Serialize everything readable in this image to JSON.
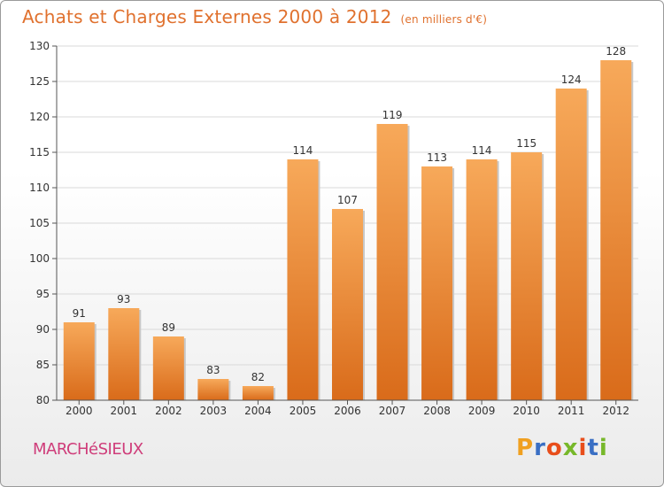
{
  "title": "Achats et Charges Externes 2000 à 2012",
  "unit": "(en milliers d'€)",
  "commune": "MARCHéSIEUX",
  "logo": {
    "letters": [
      "P",
      "r",
      "o",
      "x",
      "i",
      "t",
      "i"
    ],
    "colors": [
      "#f0a020",
      "#3a6fc4",
      "#e84e1b",
      "#77b82a",
      "#e84e1b",
      "#3a6fc4",
      "#77b82a"
    ]
  },
  "colors": {
    "bar_top": "#f7a95a",
    "bar_bottom": "#d96b1a",
    "title": "#e0712e",
    "commune": "#cf3d7a"
  },
  "chart_data": {
    "type": "bar",
    "categories": [
      "2000",
      "2001",
      "2002",
      "2003",
      "2004",
      "2005",
      "2006",
      "2007",
      "2008",
      "2009",
      "2010",
      "2011",
      "2012"
    ],
    "values": [
      91,
      93,
      89,
      83,
      82,
      114,
      107,
      119,
      113,
      114,
      115,
      124,
      128
    ],
    "ylim": [
      80,
      130
    ],
    "yticks": [
      80,
      85,
      90,
      95,
      100,
      105,
      110,
      115,
      120,
      125,
      130
    ],
    "grid": true
  }
}
